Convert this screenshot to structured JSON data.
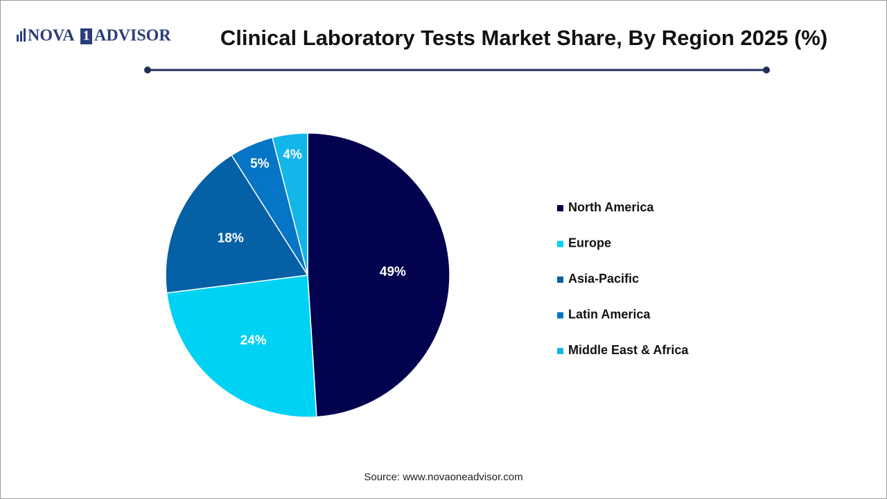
{
  "logo": [
    "NOVA",
    "1",
    "ADVISOR"
  ],
  "chart_data": {
    "type": "pie",
    "title": "Clinical Laboratory Tests Market Share, By Region 2025 (%)",
    "categories": [
      "North America",
      "Europe",
      "Asia-Pacific",
      "Latin America",
      "Middle East & Africa"
    ],
    "values": [
      49,
      24,
      18,
      5,
      4
    ],
    "value_labels": [
      "49%",
      "24%",
      "18%",
      "5%",
      "4%"
    ],
    "colors": [
      "#02024f",
      "#00d2f4",
      "#0560a6",
      "#0675c6",
      "#12b6e8"
    ],
    "legend": "right",
    "source": "Source: www.novaoneadvisor.com"
  }
}
